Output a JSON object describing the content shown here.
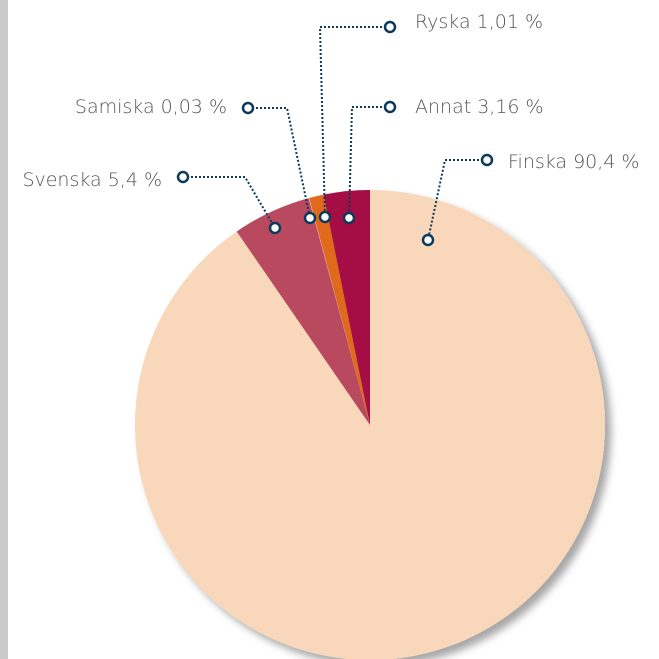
{
  "chart_data": {
    "type": "pie",
    "categories": [
      "Finska",
      "Svenska",
      "Samiska",
      "Ryska",
      "Annat"
    ],
    "values": [
      90.4,
      5.4,
      0.03,
      1.01,
      3.16
    ],
    "value_labels": [
      "90,4 %",
      "5,4 %",
      "0,03 %",
      "1,01 %",
      "3,16 %"
    ],
    "colors": [
      "#f8d7bb",
      "#b84a5f",
      "#e9e2dc",
      "#e0691f",
      "#a50c45"
    ]
  }
}
